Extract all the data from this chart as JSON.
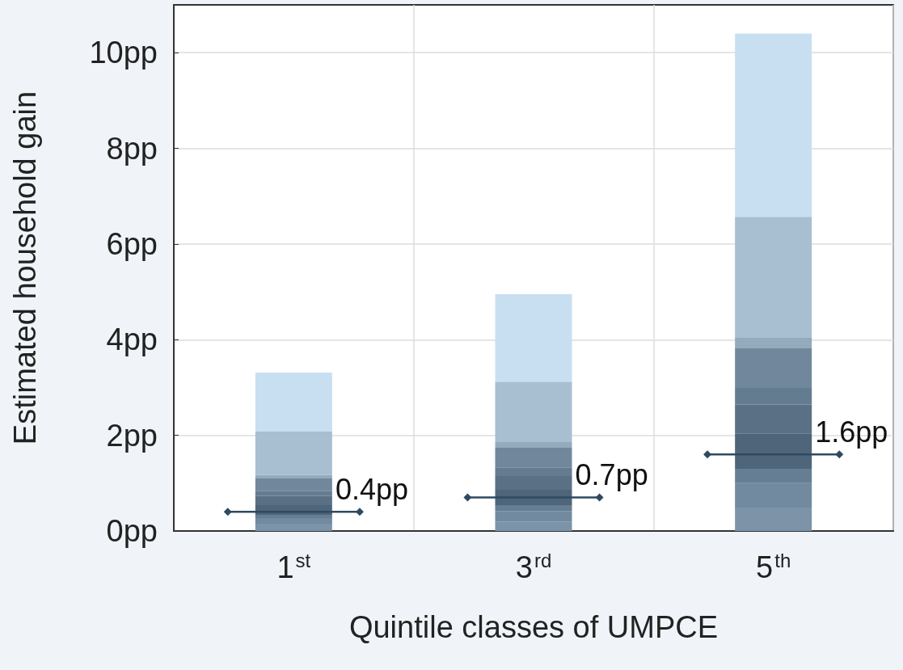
{
  "chart_data": {
    "type": "bar",
    "stacked": true,
    "xlabel": "Quintile classes of UMPCE",
    "ylabel": "Estimated household gain",
    "categories": [
      "1$^{st}$",
      "3$^{rd}$",
      "5$^{th}$"
    ],
    "series": [
      {
        "color": "#7c93a8",
        "values": [
          0.15,
          0.2,
          0.49
        ]
      },
      {
        "color": "#718a9f",
        "values": [
          0.12,
          0.22,
          0.51
        ]
      },
      {
        "color": "#657e93",
        "values": [
          0.07,
          0.12,
          0.3
        ]
      },
      {
        "color": "#4f6579",
        "values": [
          0.2,
          0.32,
          0.74
        ]
      },
      {
        "color": "#5a7185",
        "values": [
          0.19,
          0.29,
          0.6
        ]
      },
      {
        "color": "#647c90",
        "values": [
          0.11,
          0.18,
          0.35
        ]
      },
      {
        "color": "#71889c",
        "values": [
          0.26,
          0.41,
          0.83
        ]
      },
      {
        "color": "#94aabd",
        "values": [
          0.07,
          0.12,
          0.22
        ]
      },
      {
        "color": "#a8bfd2",
        "values": [
          0.91,
          1.26,
          2.53
        ]
      },
      {
        "color": "#c8dff2",
        "values": [
          1.23,
          1.83,
          3.83
        ]
      },
      {
        "type": "scatter",
        "marker": "diamond",
        "color": "#2f4a60",
        "x": [
          "1$^{st}$",
          "3$^{rd}$",
          "5$^{th}$"
        ],
        "values": [
          0.4,
          0.7,
          1.6
        ],
        "value_labels": [
          "0.4pp",
          "0.7pp",
          "1.6pp"
        ]
      }
    ],
    "ylim": [
      0,
      11
    ],
    "yticks": [
      {
        "value": 0,
        "label": "0pp"
      },
      {
        "value": 2,
        "label": "2pp"
      },
      {
        "value": 4,
        "label": "4pp"
      },
      {
        "value": 6,
        "label": "6pp"
      },
      {
        "value": 8,
        "label": "8pp"
      },
      {
        "value": 10,
        "label": "10pp"
      }
    ],
    "grid": true
  }
}
